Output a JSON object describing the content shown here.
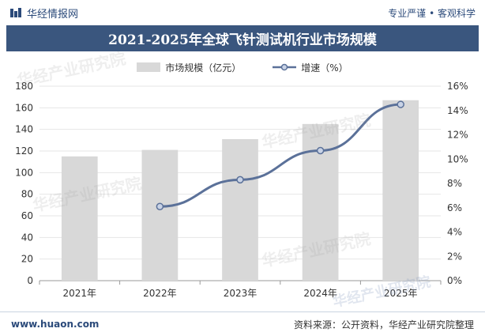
{
  "header": {
    "brand": "华经情报网",
    "slogan": "专业严谨 • 客观科学"
  },
  "footer": {
    "url": "www.huaon.com",
    "source": "资料来源：公开资料，华经产业研究院整理"
  },
  "watermark": {
    "text": "华经产业研究院",
    "url": "www.huaon.com"
  },
  "colors": {
    "title_bg": "#3a567e",
    "bar": "#d8d8d8",
    "line": "#5b7199",
    "brand": "#2b4a7a"
  },
  "chart_data": {
    "type": "bar+line",
    "title": "2021-2025年全球飞针测试机行业市场规模",
    "categories": [
      "2021年",
      "2022年",
      "2023年",
      "2024年",
      "2025年"
    ],
    "series": [
      {
        "name": "市场规模（亿元）",
        "type": "bar",
        "axis": "left",
        "values": [
          115,
          121,
          131,
          145,
          167
        ]
      },
      {
        "name": "增速（%）",
        "type": "line",
        "axis": "right",
        "values": [
          null,
          6.1,
          8.3,
          10.7,
          14.5
        ]
      }
    ],
    "y_left": {
      "min": 0,
      "max": 180,
      "step": 20,
      "ticks": [
        "0",
        "20",
        "40",
        "60",
        "80",
        "100",
        "120",
        "140",
        "160",
        "180"
      ]
    },
    "y_right": {
      "min": 0,
      "max": 16,
      "step": 2,
      "ticks": [
        "0%",
        "2%",
        "4%",
        "6%",
        "8%",
        "10%",
        "12%",
        "14%",
        "16%"
      ]
    },
    "grid": true,
    "legend_position": "top-center"
  }
}
